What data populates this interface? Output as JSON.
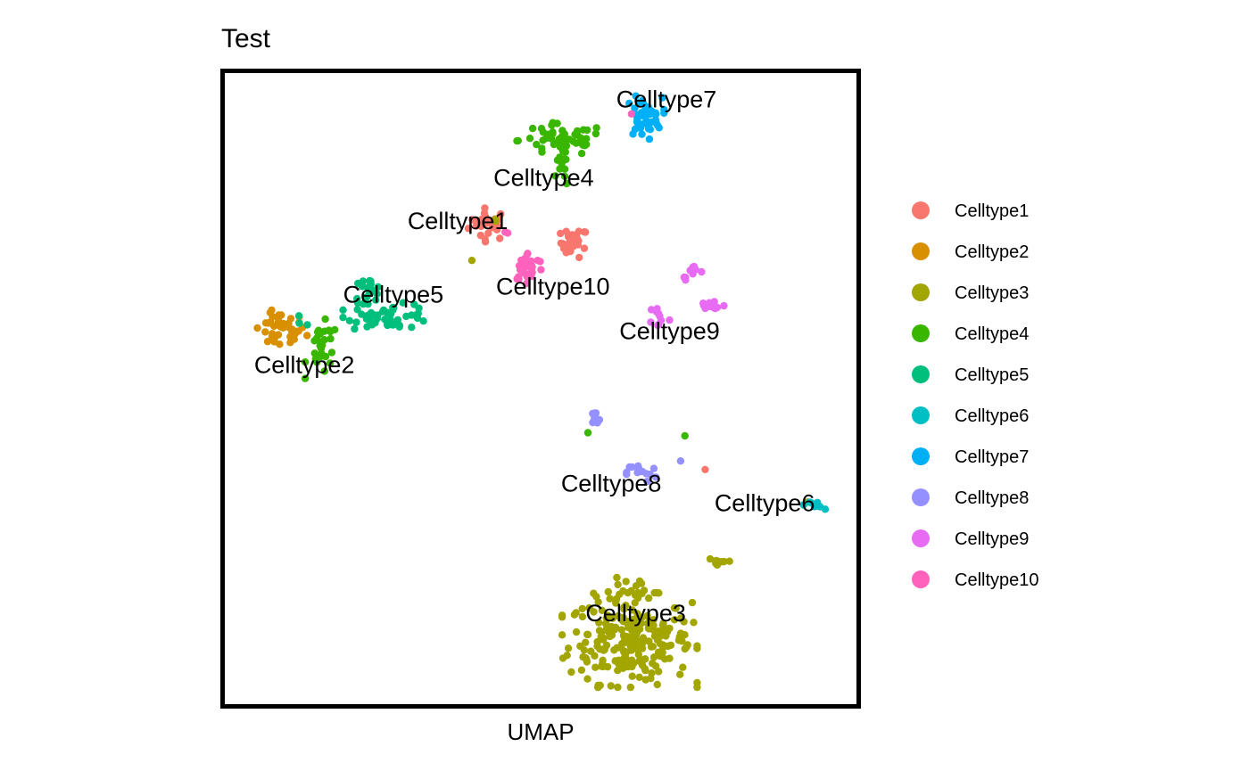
{
  "chart_data": {
    "type": "scatter",
    "title": "Test",
    "xlabel": "UMAP",
    "ylabel": "",
    "xlim": [
      0,
      100
    ],
    "ylim": [
      0,
      100
    ],
    "grid": false,
    "legend_position": "right",
    "series": [
      {
        "name": "Celltype1",
        "color": "#F8766D"
      },
      {
        "name": "Celltype2",
        "color": "#D89000"
      },
      {
        "name": "Celltype3",
        "color": "#A3A500"
      },
      {
        "name": "Celltype4",
        "color": "#39B600"
      },
      {
        "name": "Celltype5",
        "color": "#00BF7D"
      },
      {
        "name": "Celltype6",
        "color": "#00BFC4"
      },
      {
        "name": "Celltype7",
        "color": "#00B0F6"
      },
      {
        "name": "Celltype8",
        "color": "#9590FF"
      },
      {
        "name": "Celltype9",
        "color": "#E76BF3"
      },
      {
        "name": "Celltype10",
        "color": "#FF62BC"
      }
    ],
    "clusters": [
      {
        "series": 0,
        "cx": 41.5,
        "cy": 76.8,
        "sx": 1.6,
        "sy": 1.3,
        "n": 28
      },
      {
        "series": 0,
        "cx": 55.5,
        "cy": 73.8,
        "sx": 1.1,
        "sy": 1.2,
        "n": 26
      },
      {
        "series": 0,
        "cx": 76.8,
        "cy": 36.8,
        "sx": 0.2,
        "sy": 0.2,
        "n": 1
      },
      {
        "series": 1,
        "cx": 7.5,
        "cy": 59.5,
        "sx": 2.1,
        "sy": 1.5,
        "n": 42
      },
      {
        "series": 2,
        "cx": 64.5,
        "cy": 9.0,
        "sx": 5.0,
        "sy": 3.5,
        "n": 230
      },
      {
        "series": 2,
        "cx": 63.5,
        "cy": 17.0,
        "sx": 2.8,
        "sy": 1.5,
        "n": 18
      },
      {
        "series": 2,
        "cx": 79.3,
        "cy": 21.8,
        "sx": 1.2,
        "sy": 0.5,
        "n": 8
      },
      {
        "series": 2,
        "cx": 42.4,
        "cy": 77.5,
        "sx": 0.3,
        "sy": 0.3,
        "n": 2
      },
      {
        "series": 2,
        "cx": 38.8,
        "cy": 70.9,
        "sx": 0.2,
        "sy": 0.2,
        "n": 1
      },
      {
        "series": 2,
        "cx": 93.5,
        "cy": 31.5,
        "sx": 0.2,
        "sy": 0.2,
        "n": 1
      },
      {
        "series": 3,
        "cx": 53.5,
        "cy": 90.5,
        "sx": 3.5,
        "sy": 1.3,
        "n": 52
      },
      {
        "series": 3,
        "cx": 53.5,
        "cy": 86.5,
        "sx": 0.5,
        "sy": 2.0,
        "n": 14
      },
      {
        "series": 3,
        "cx": 14.5,
        "cy": 56.5,
        "sx": 1.3,
        "sy": 2.2,
        "n": 28
      },
      {
        "series": 3,
        "cx": 57.7,
        "cy": 42.8,
        "sx": 0.2,
        "sy": 0.2,
        "n": 1
      },
      {
        "series": 3,
        "cx": 73.5,
        "cy": 42.3,
        "sx": 0.2,
        "sy": 0.2,
        "n": 1
      },
      {
        "series": 4,
        "cx": 25.5,
        "cy": 61.8,
        "sx": 3.5,
        "sy": 1.0,
        "n": 48
      },
      {
        "series": 4,
        "cx": 21.8,
        "cy": 66.0,
        "sx": 1.2,
        "sy": 1.0,
        "n": 22
      },
      {
        "series": 4,
        "cx": 11.3,
        "cy": 61.5,
        "sx": 0.8,
        "sy": 0.6,
        "n": 3
      },
      {
        "series": 5,
        "cx": 94.6,
        "cy": 31.0,
        "sx": 0.8,
        "sy": 0.4,
        "n": 10
      },
      {
        "series": 6,
        "cx": 66.8,
        "cy": 94.2,
        "sx": 1.5,
        "sy": 1.6,
        "n": 45
      },
      {
        "series": 7,
        "cx": 58.7,
        "cy": 44.7,
        "sx": 0.6,
        "sy": 0.8,
        "n": 10
      },
      {
        "series": 7,
        "cx": 66.5,
        "cy": 36.3,
        "sx": 1.2,
        "sy": 0.8,
        "n": 14
      },
      {
        "series": 7,
        "cx": 72.8,
        "cy": 38.2,
        "sx": 0.2,
        "sy": 0.2,
        "n": 1
      },
      {
        "series": 8,
        "cx": 75.0,
        "cy": 69.3,
        "sx": 0.7,
        "sy": 0.6,
        "n": 12
      },
      {
        "series": 8,
        "cx": 77.8,
        "cy": 63.5,
        "sx": 1.2,
        "sy": 0.5,
        "n": 14
      },
      {
        "series": 8,
        "cx": 69.3,
        "cy": 61.8,
        "sx": 0.8,
        "sy": 1.0,
        "n": 10
      },
      {
        "series": 8,
        "cx": 73.5,
        "cy": 68.0,
        "sx": 0.2,
        "sy": 0.5,
        "n": 3
      },
      {
        "series": 9,
        "cx": 48.0,
        "cy": 69.8,
        "sx": 1.3,
        "sy": 1.2,
        "n": 30
      },
      {
        "series": 9,
        "cx": 44.5,
        "cy": 75.3,
        "sx": 0.3,
        "sy": 0.3,
        "n": 2
      },
      {
        "series": 9,
        "cx": 64.8,
        "cy": 94.8,
        "sx": 0.2,
        "sy": 0.2,
        "n": 1
      }
    ],
    "annotations": [
      {
        "text": "Celltype7",
        "x": 70.5,
        "y": 97.3
      },
      {
        "text": "Celltype4",
        "x": 50.5,
        "y": 84.5
      },
      {
        "text": "Celltype1",
        "x": 36.5,
        "y": 77.5
      },
      {
        "text": "Celltype10",
        "x": 52.0,
        "y": 66.8
      },
      {
        "text": "Celltype5",
        "x": 26.0,
        "y": 65.5
      },
      {
        "text": "Celltype9",
        "x": 71.0,
        "y": 59.5
      },
      {
        "text": "Celltype2",
        "x": 11.5,
        "y": 54.0
      },
      {
        "text": "Celltype8",
        "x": 61.5,
        "y": 34.7
      },
      {
        "text": "Celltype6",
        "x": 86.5,
        "y": 31.5
      },
      {
        "text": "Celltype3",
        "x": 65.5,
        "y": 13.5
      }
    ]
  }
}
